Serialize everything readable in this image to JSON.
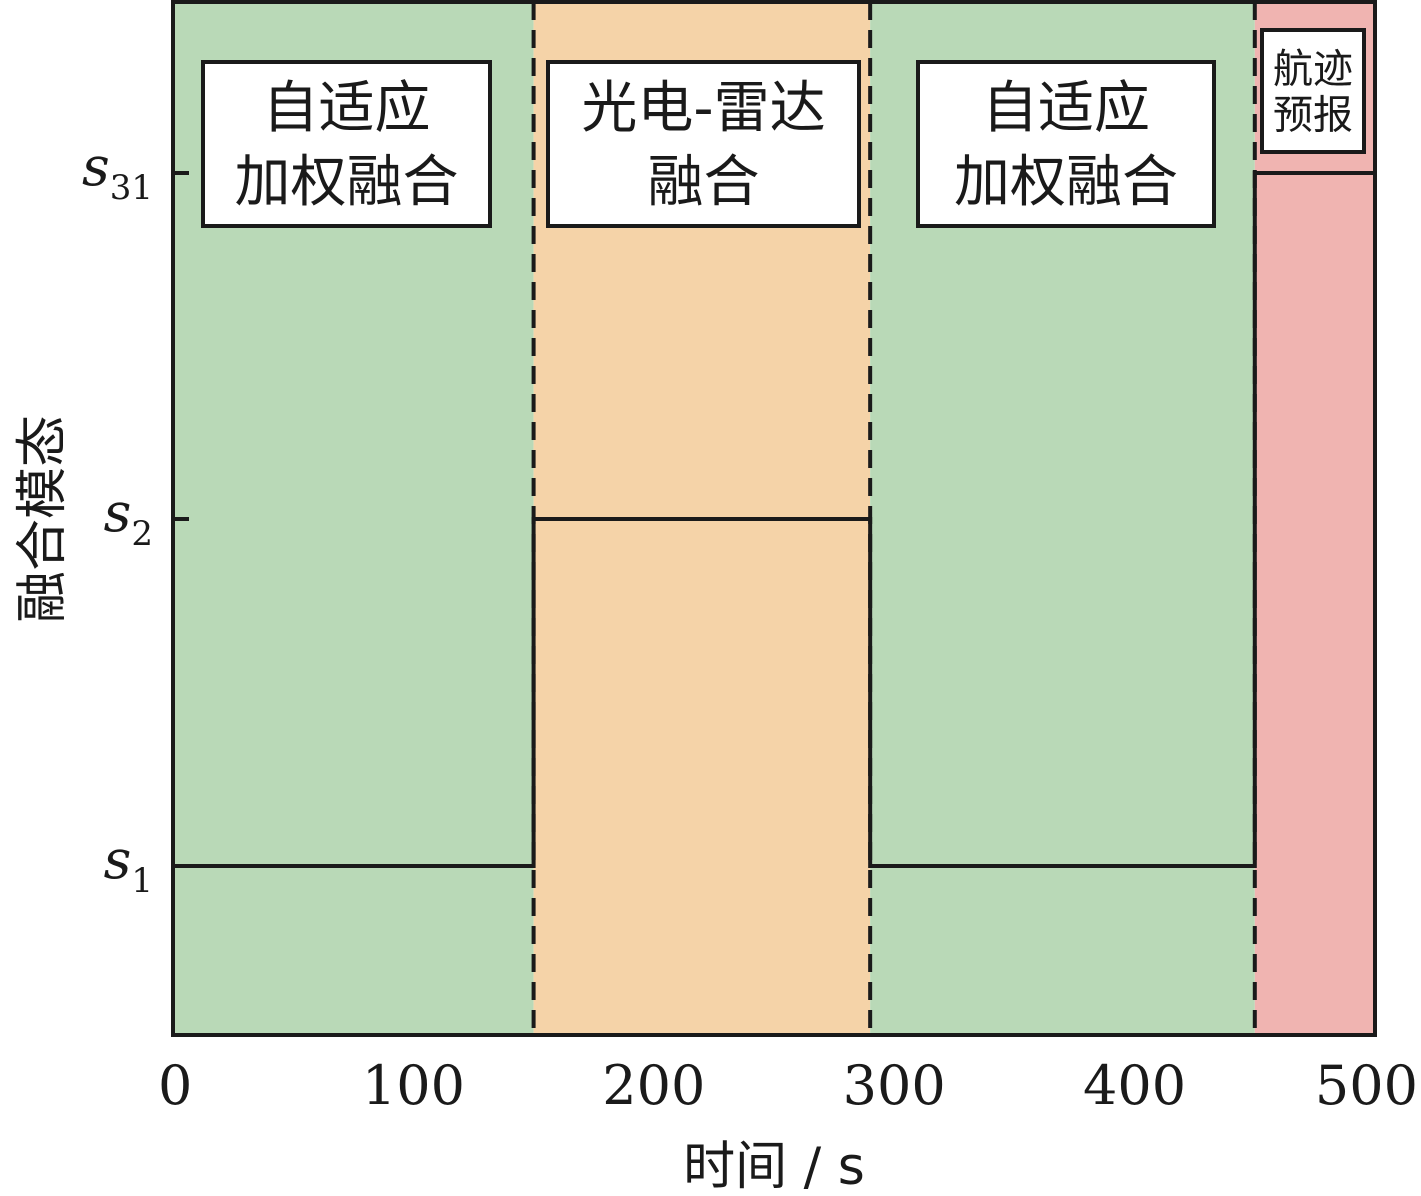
{
  "chart_data": {
    "type": "line",
    "step": true,
    "xlabel": "时间 / s",
    "ylabel": "融合模态",
    "xlim": [
      0,
      500
    ],
    "xticks": [
      "0",
      "100",
      "200",
      "300",
      "400",
      "500"
    ],
    "xtick_values": [
      0,
      100,
      200,
      300,
      400,
      500
    ],
    "y_states": [
      {
        "id": "s1",
        "symbol": "s",
        "subscript": "1",
        "level": 1
      },
      {
        "id": "s2",
        "symbol": "s",
        "subscript": "2",
        "level": 2
      },
      {
        "id": "s31",
        "symbol": "s",
        "subscript": "31",
        "level": 3
      }
    ],
    "regions": [
      {
        "x_start": 0,
        "x_end": 150,
        "mode": "s1",
        "color": "#b9d9b7",
        "label_lines": [
          "自适应",
          "加权融合"
        ]
      },
      {
        "x_start": 150,
        "x_end": 290,
        "mode": "s2",
        "color": "#f5d3a8",
        "label_lines": [
          "光电-雷达",
          "融合"
        ]
      },
      {
        "x_start": 290,
        "x_end": 450,
        "mode": "s1",
        "color": "#b9d9b7",
        "label_lines": [
          "自适应",
          "加权融合"
        ]
      },
      {
        "x_start": 450,
        "x_end": 500,
        "mode": "s31",
        "color": "#f0b4b1",
        "label_lines": [
          "航迹",
          "预报"
        ]
      }
    ],
    "grid": false,
    "legend": "none"
  }
}
